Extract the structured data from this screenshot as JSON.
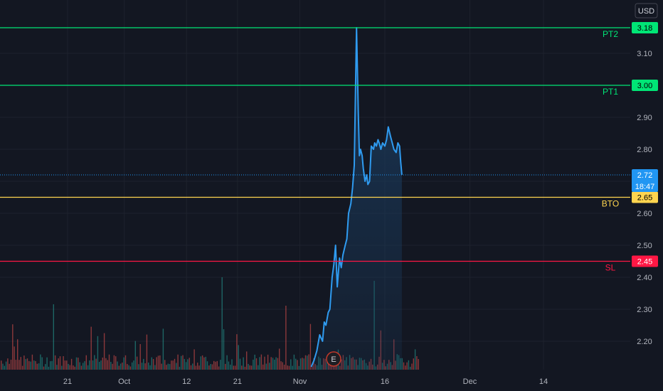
{
  "currency_button": "USD",
  "colors": {
    "background": "#131722",
    "grid": "#1e222d",
    "price_line": "#2f9bf0",
    "area_fill": "#1a3a5c",
    "target": "#00e676",
    "entry": "#ffd54f",
    "stop": "#ff1744",
    "volume_up": "#26a69a",
    "volume_down": "#ef5350",
    "last_price": "#2196f3"
  },
  "chart_data": {
    "type": "line",
    "y_axis": {
      "range": [
        2.12,
        3.21
      ],
      "ticks": [
        "3.10",
        "2.90",
        "2.80",
        "2.60",
        "2.50",
        "2.40",
        "2.30",
        "2.20"
      ]
    },
    "x_axis": {
      "ticks": [
        {
          "label": "21",
          "day": 0
        },
        {
          "label": "Oct",
          "day": 10
        },
        {
          "label": "12",
          "day": 21
        },
        {
          "label": "21",
          "day": 30
        },
        {
          "label": "Nov",
          "day": 41
        },
        {
          "label": "16",
          "day": 56
        },
        {
          "label": "Dec",
          "day": 71
        },
        {
          "label": "14",
          "day": 84
        }
      ]
    },
    "horizontal_lines": [
      {
        "name": "PT2",
        "value": 3.18,
        "tag": "3.18",
        "color": "#00e676"
      },
      {
        "name": "PT1",
        "value": 3.0,
        "tag": "3.00",
        "color": "#00e676"
      },
      {
        "name": "BTO",
        "value": 2.65,
        "tag": "2.65",
        "color": "#ffd54f"
      },
      {
        "name": "SL",
        "value": 2.45,
        "tag": "2.45",
        "color": "#ff1744"
      }
    ],
    "last_price": {
      "value": 2.72,
      "label": "2.72",
      "countdown": "18:47"
    },
    "earnings_marker": "E",
    "series": [
      {
        "day": [
          43.0,
          43.5,
          44.0,
          44.5,
          45.0,
          45.3,
          45.6,
          46.0,
          46.3,
          46.7,
          47.0,
          47.3,
          47.6,
          48.0,
          48.3,
          48.6,
          49.0,
          49.3,
          49.6,
          50.0,
          50.3,
          50.6,
          51.0,
          51.3,
          51.5,
          51.7,
          52.0,
          52.2,
          52.5,
          52.8,
          53.0,
          53.3,
          53.6,
          54.0,
          54.2,
          54.5,
          54.8,
          55.0,
          55.3,
          55.6,
          56.0,
          56.3,
          56.6,
          57.0,
          57.3,
          57.6,
          58.0,
          58.3,
          58.6,
          58.8,
          59.0
        ],
        "value": [
          2.12,
          2.14,
          2.17,
          2.22,
          2.2,
          2.26,
          2.25,
          2.29,
          2.3,
          2.4,
          2.44,
          2.5,
          2.37,
          2.46,
          2.43,
          2.47,
          2.5,
          2.52,
          2.6,
          2.63,
          2.68,
          2.75,
          3.18,
          2.92,
          2.78,
          2.8,
          2.78,
          2.74,
          2.7,
          2.72,
          2.69,
          2.7,
          2.81,
          2.8,
          2.82,
          2.81,
          2.83,
          2.82,
          2.8,
          2.82,
          2.81,
          2.83,
          2.87,
          2.84,
          2.82,
          2.8,
          2.79,
          2.82,
          2.81,
          2.76,
          2.72
        ]
      }
    ],
    "volume_note": "Volume histogram at bottom of price pane, shown as green/red bars"
  }
}
